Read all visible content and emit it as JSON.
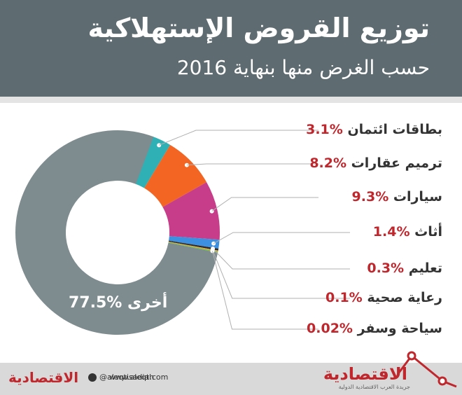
{
  "header": {
    "title": "توزيع القروض الإستهلاكية",
    "subtitle": "حسب الغرض منها بنهاية 2016"
  },
  "chart_data": {
    "type": "pie",
    "slices": [
      {
        "label": "بطاقات ائتمان",
        "value": 3.1,
        "pct_text": "%3.1",
        "color": "#2fb0b5"
      },
      {
        "label": "ترميم عقارات",
        "value": 8.2,
        "pct_text": "%8.2",
        "color": "#f26522"
      },
      {
        "label": "سيارات",
        "value": 9.3,
        "pct_text": "%9.3",
        "color": "#c83d8a"
      },
      {
        "label": "أثاث",
        "value": 1.4,
        "pct_text": "%1.4",
        "color": "#3d8fe0"
      },
      {
        "label": "تعليم",
        "value": 0.3,
        "pct_text": "%0.3",
        "color": "#2a2a2a"
      },
      {
        "label": "رعاية صحية",
        "value": 0.1,
        "pct_text": "%0.1",
        "color": "#e8a33d"
      },
      {
        "label": "سياحة وسفر",
        "value": 0.02,
        "pct_text": "%0.02",
        "color": "#6abf4b"
      },
      {
        "label": "أخرى",
        "value": 77.5,
        "pct_text": "%77.5",
        "color": "#7e8c8f"
      }
    ]
  },
  "footer": {
    "brand": "الاقتصادية",
    "brand_sub": "جريدة العرب الاقتصادية الدولية",
    "social": "@aleqtisadiah",
    "website": "www.aleqt.com"
  }
}
